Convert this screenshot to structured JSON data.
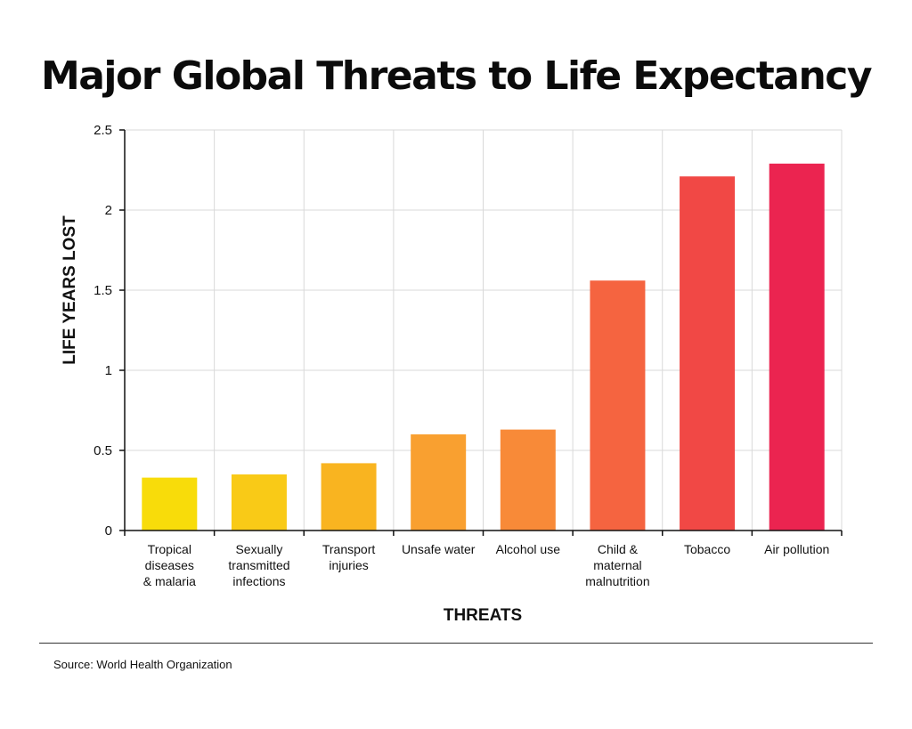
{
  "chart_data": {
    "type": "bar",
    "title": "Major Global Threats to Life Expectancy",
    "xlabel": "THREATS",
    "ylabel": "LIFE YEARS LOST",
    "ylim": [
      0,
      2.5
    ],
    "yticks": [
      0,
      0.5,
      1,
      1.5,
      2,
      2.5
    ],
    "ytick_labels": [
      "0",
      "0.5",
      "1",
      "1.5",
      "2",
      "2.5"
    ],
    "grid": true,
    "categories": [
      [
        "Tropical",
        "diseases",
        "& malaria"
      ],
      [
        "Sexually",
        "transmitted",
        "infections"
      ],
      [
        "Transport",
        "injuries"
      ],
      [
        "Unsafe water"
      ],
      [
        "Alcohol use"
      ],
      [
        "Child &",
        "maternal",
        "malnutrition"
      ],
      [
        "Tobacco"
      ],
      [
        "Air pollution"
      ]
    ],
    "values": [
      0.33,
      0.35,
      0.42,
      0.6,
      0.63,
      1.56,
      2.21,
      2.29
    ],
    "colors": [
      "#F8DC0A",
      "#F9CA17",
      "#F9B420",
      "#F9A030",
      "#F88A38",
      "#F56440",
      "#F14845",
      "#EB2450"
    ]
  },
  "footer": {
    "source": "Source: World Health Organization"
  }
}
